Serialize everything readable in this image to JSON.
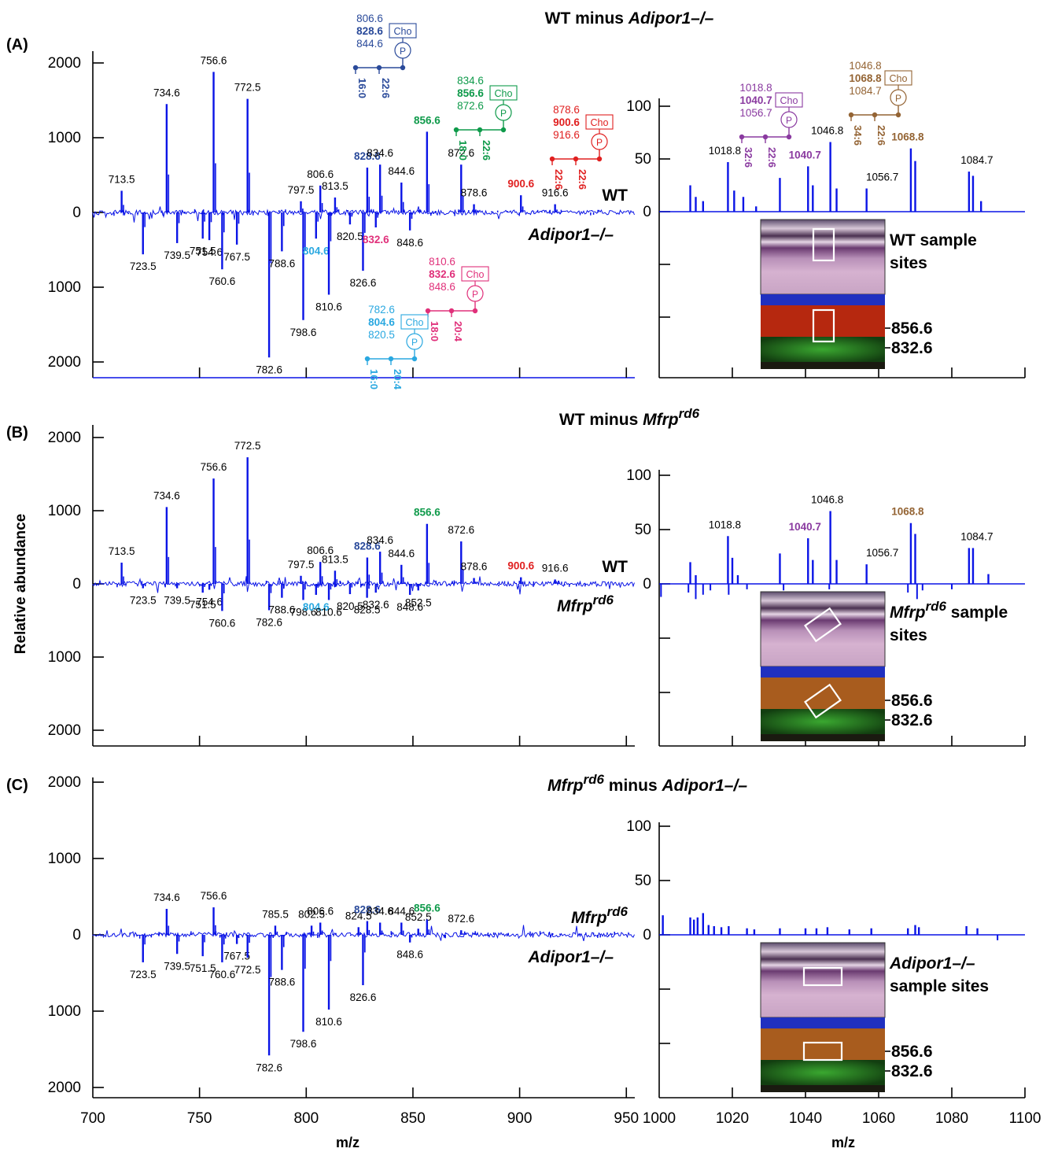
{
  "figure": {
    "ylabel": "Relative abundance",
    "xlabel": "m/z",
    "colors": {
      "spectrum": "#0a14e6",
      "axis": "#000000",
      "label": "#000000",
      "pc16_22": "#2a4a9a",
      "pc18_22": "#0e9a4a",
      "pc22_22": "#e02020",
      "pc18_20": "#e0307a",
      "pc16_20": "#2aa8e0",
      "pc32_22": "#8a3aa0",
      "pc34_22": "#946434"
    }
  },
  "panels": [
    {
      "letter": "(A)",
      "title_pre": "WT minus ",
      "title_it": "Adipor1–/–",
      "title_post": "",
      "upper_label": "WT",
      "upper_italic": false,
      "lower_label": "Adipor1–/–",
      "lower_italic": true,
      "inset_caption": [
        "WT sample",
        "sites"
      ],
      "inset_italic_first": "",
      "inset_markers": [
        "856.6",
        "832.6"
      ],
      "left_ticks": [
        "2000",
        "1000",
        "0",
        "1000",
        "2000"
      ],
      "right_ticks": [
        "100",
        "50",
        "0"
      ],
      "structures": [
        {
          "masses": [
            "806.6",
            "828.6",
            "844.6"
          ],
          "bold": 1,
          "chains": [
            "16:0",
            "22:6"
          ],
          "color": "pc16_22"
        },
        {
          "masses": [
            "834.6",
            "856.6",
            "872.6"
          ],
          "bold": 1,
          "chains": [
            "18:0",
            "22:6"
          ],
          "color": "pc18_22"
        },
        {
          "masses": [
            "878.6",
            "900.6",
            "916.6"
          ],
          "bold": 1,
          "chains": [
            "22:6",
            "22:6"
          ],
          "color": "pc22_22"
        },
        {
          "masses": [
            "810.6",
            "832.6",
            "848.6"
          ],
          "bold": 1,
          "chains": [
            "18:0",
            "20:4"
          ],
          "color": "pc18_20"
        },
        {
          "masses": [
            "782.6",
            "804.6",
            "820.5"
          ],
          "bold": 1,
          "chains": [
            "16:0",
            "20:4"
          ],
          "color": "pc16_20"
        },
        {
          "masses": [
            "1018.8",
            "1040.7",
            "1056.7"
          ],
          "bold": 1,
          "chains": [
            "32:6",
            "22:6"
          ],
          "color": "pc32_22"
        },
        {
          "masses": [
            "1046.8",
            "1068.8",
            "1084.7"
          ],
          "bold": 1,
          "chains": [
            "34:6",
            "22:6"
          ],
          "color": "pc34_22"
        }
      ],
      "head_labels": [
        "Cho",
        "P"
      ]
    },
    {
      "letter": "(B)",
      "title_pre": "WT minus ",
      "title_it": "Mfrp",
      "title_sup": "rd6",
      "title_post": "",
      "upper_label": "WT",
      "upper_italic": false,
      "lower_label": "Mfrp",
      "lower_sup": "rd6",
      "lower_italic": true,
      "inset_caption": [
        "sample",
        "sites"
      ],
      "inset_italic_first": "Mfrp",
      "inset_sup": "rd6",
      "inset_markers": [
        "856.6",
        "832.6"
      ],
      "left_ticks": [
        "2000",
        "1000",
        "0",
        "1000",
        "2000"
      ],
      "right_ticks": [
        "100",
        "50",
        "0"
      ]
    },
    {
      "letter": "(C)",
      "title_pre": "",
      "title_it": "Mfrp",
      "title_sup": "rd6",
      "title_post": " minus ",
      "title_it2": "Adipor1–/–",
      "upper_label": "Mfrp",
      "upper_sup": "rd6",
      "upper_italic": true,
      "lower_label": "Adipor1–/–",
      "lower_italic": true,
      "inset_caption": [
        "Adipor1–/–",
        "sample sites"
      ],
      "inset_italic_first": "",
      "inset_markers": [
        "856.6",
        "832.6"
      ],
      "left_ticks": [
        "2000",
        "1000",
        "0",
        "1000",
        "2000"
      ],
      "right_ticks": [
        "100",
        "50",
        "0"
      ],
      "x_ticks_left": [
        "700",
        "750",
        "800",
        "850",
        "900",
        "950"
      ],
      "x_ticks_right": [
        "1000",
        "1020",
        "1040",
        "1060",
        "1080",
        "1100"
      ]
    }
  ],
  "chart_data": [
    {
      "type": "bar",
      "title": "WT minus Adipor1–/–",
      "xlabel": "m/z",
      "ylabel": "Relative abundance",
      "xlim_left": [
        700,
        955
      ],
      "ylim_left": [
        -2000,
        2000
      ],
      "xlim_right": [
        1000,
        1100
      ],
      "ylim_right": [
        -100,
        100
      ],
      "upper_series": "WT",
      "lower_series": "Adipor1–/–",
      "peaks_up": [
        {
          "mz": 713.5,
          "v": 290,
          "label": "713.5"
        },
        {
          "mz": 734.6,
          "v": 1450,
          "label": "734.6"
        },
        {
          "mz": 756.6,
          "v": 1880,
          "label": "756.6"
        },
        {
          "mz": 772.5,
          "v": 1520,
          "label": "772.5"
        },
        {
          "mz": 797.5,
          "v": 150,
          "label": "797.5"
        },
        {
          "mz": 806.6,
          "v": 360,
          "label": "806.6"
        },
        {
          "mz": 813.5,
          "v": 200,
          "label": "813.5"
        },
        {
          "mz": 828.6,
          "v": 600,
          "label": "828.6",
          "color": "pc16_22",
          "bold": true
        },
        {
          "mz": 834.6,
          "v": 640,
          "label": "834.6"
        },
        {
          "mz": 844.6,
          "v": 400,
          "label": "844.6"
        },
        {
          "mz": 856.6,
          "v": 1080,
          "label": "856.6",
          "color": "pc18_22",
          "bold": true
        },
        {
          "mz": 872.6,
          "v": 640,
          "label": "872.6"
        },
        {
          "mz": 878.6,
          "v": 110,
          "label": "878.6"
        },
        {
          "mz": 900.6,
          "v": 230,
          "label": "900.6",
          "color": "pc22_22",
          "bold": true
        },
        {
          "mz": 916.6,
          "v": 110,
          "label": "916.6"
        }
      ],
      "peaks_down": [
        {
          "mz": 723.5,
          "v": 560,
          "label": "723.5"
        },
        {
          "mz": 739.5,
          "v": 410,
          "label": "739.5"
        },
        {
          "mz": 751.5,
          "v": 350,
          "label": "751.5"
        },
        {
          "mz": 754.6,
          "v": 370,
          "label": "754.6"
        },
        {
          "mz": 760.6,
          "v": 760,
          "label": "760.6"
        },
        {
          "mz": 767.5,
          "v": 430,
          "label": "767.5"
        },
        {
          "mz": 782.6,
          "v": 1940,
          "label": "782.6"
        },
        {
          "mz": 788.6,
          "v": 520,
          "label": "788.6"
        },
        {
          "mz": 798.6,
          "v": 1440,
          "label": "798.6"
        },
        {
          "mz": 804.6,
          "v": 350,
          "label": "804.6",
          "color": "pc16_20",
          "bold": true
        },
        {
          "mz": 810.6,
          "v": 1100,
          "label": "810.6"
        },
        {
          "mz": 820.5,
          "v": 160,
          "label": "820.5"
        },
        {
          "mz": 826.6,
          "v": 780,
          "label": "826.6"
        },
        {
          "mz": 832.6,
          "v": 200,
          "label": "832.6",
          "color": "pc18_20",
          "bold": true
        },
        {
          "mz": 848.6,
          "v": 240,
          "label": "848.6"
        }
      ],
      "right_peaks_up": [
        {
          "mz": 1008.5,
          "v": 25
        },
        {
          "mz": 1010,
          "v": 14
        },
        {
          "mz": 1012,
          "v": 10
        },
        {
          "mz": 1018.8,
          "v": 47,
          "label": "1018.8"
        },
        {
          "mz": 1020.5,
          "v": 20
        },
        {
          "mz": 1023,
          "v": 14
        },
        {
          "mz": 1026.5,
          "v": 5
        },
        {
          "mz": 1033,
          "v": 32
        },
        {
          "mz": 1040.7,
          "v": 43,
          "label": "1040.7",
          "color": "pc32_22",
          "bold": true
        },
        {
          "mz": 1042,
          "v": 25
        },
        {
          "mz": 1046.8,
          "v": 66,
          "label": "1046.8"
        },
        {
          "mz": 1048.5,
          "v": 22
        },
        {
          "mz": 1056.7,
          "v": 22,
          "label": "1056.7"
        },
        {
          "mz": 1068.8,
          "v": 60,
          "label": "1068.8",
          "color": "pc34_22",
          "bold": true
        },
        {
          "mz": 1070,
          "v": 48
        },
        {
          "mz": 1084.7,
          "v": 38,
          "label": "1084.7"
        },
        {
          "mz": 1085.8,
          "v": 34
        },
        {
          "mz": 1088,
          "v": 10
        }
      ]
    },
    {
      "type": "bar",
      "title": "WT minus Mfrprd6",
      "xlabel": "m/z",
      "ylabel": "Relative abundance",
      "xlim_left": [
        700,
        955
      ],
      "ylim_left": [
        -2000,
        2000
      ],
      "xlim_right": [
        1000,
        1100
      ],
      "ylim_right": [
        -100,
        100
      ],
      "upper_series": "WT",
      "lower_series": "Mfrprd6",
      "peaks_up": [
        {
          "mz": 713.5,
          "v": 290,
          "label": "713.5"
        },
        {
          "mz": 734.6,
          "v": 1050,
          "label": "734.6"
        },
        {
          "mz": 756.6,
          "v": 1440,
          "label": "756.6"
        },
        {
          "mz": 772.5,
          "v": 1730,
          "label": "772.5"
        },
        {
          "mz": 797.5,
          "v": 110,
          "label": "797.5"
        },
        {
          "mz": 806.6,
          "v": 300,
          "label": "806.6"
        },
        {
          "mz": 813.5,
          "v": 180,
          "label": "813.5"
        },
        {
          "mz": 828.6,
          "v": 360,
          "label": "828.6",
          "color": "pc16_22",
          "bold": true
        },
        {
          "mz": 834.6,
          "v": 440,
          "label": "834.6"
        },
        {
          "mz": 844.6,
          "v": 260,
          "label": "844.6"
        },
        {
          "mz": 856.6,
          "v": 820,
          "label": "856.6",
          "color": "pc18_22",
          "bold": true
        },
        {
          "mz": 872.6,
          "v": 580,
          "label": "872.6"
        },
        {
          "mz": 878.6,
          "v": 80,
          "label": "878.6"
        },
        {
          "mz": 900.6,
          "v": 90,
          "label": "900.6",
          "color": "pc22_22",
          "bold": true
        },
        {
          "mz": 916.6,
          "v": 60,
          "label": "916.6"
        }
      ],
      "peaks_down": [
        {
          "mz": 723.5,
          "v": 60,
          "label": "723.5"
        },
        {
          "mz": 739.5,
          "v": 60,
          "label": "739.5"
        },
        {
          "mz": 751.5,
          "v": 120,
          "label": "751.5"
        },
        {
          "mz": 754.6,
          "v": 80,
          "label": "754.6"
        },
        {
          "mz": 760.6,
          "v": 370,
          "label": "760.6"
        },
        {
          "mz": 782.6,
          "v": 360,
          "label": "782.6"
        },
        {
          "mz": 788.6,
          "v": 190,
          "label": "788.6"
        },
        {
          "mz": 798.6,
          "v": 220,
          "label": "798.6"
        },
        {
          "mz": 804.6,
          "v": 150,
          "label": "804.6",
          "color": "pc16_20",
          "bold": true
        },
        {
          "mz": 810.6,
          "v": 220,
          "label": "810.6"
        },
        {
          "mz": 820.5,
          "v": 140,
          "label": "820.5"
        },
        {
          "mz": 828.5,
          "v": 190,
          "label": "828.5"
        },
        {
          "mz": 832.6,
          "v": 120,
          "label": "832.6"
        },
        {
          "mz": 848.6,
          "v": 150,
          "label": "848.6"
        },
        {
          "mz": 852.5,
          "v": 90,
          "label": "852.5"
        }
      ],
      "right_peaks_up": [
        {
          "mz": 1008.5,
          "v": 20
        },
        {
          "mz": 1010,
          "v": 8
        },
        {
          "mz": 1018.8,
          "v": 44,
          "label": "1018.8"
        },
        {
          "mz": 1020,
          "v": 24
        },
        {
          "mz": 1021.5,
          "v": 8
        },
        {
          "mz": 1033,
          "v": 28
        },
        {
          "mz": 1040.7,
          "v": 42,
          "label": "1040.7",
          "color": "pc32_22",
          "bold": true
        },
        {
          "mz": 1042,
          "v": 22
        },
        {
          "mz": 1046.8,
          "v": 67,
          "label": "1046.8"
        },
        {
          "mz": 1048.5,
          "v": 22
        },
        {
          "mz": 1056.7,
          "v": 18,
          "label": "1056.7"
        },
        {
          "mz": 1068.8,
          "v": 56,
          "label": "1068.8",
          "color": "pc34_22",
          "bold": true
        },
        {
          "mz": 1070,
          "v": 46
        },
        {
          "mz": 1084.7,
          "v": 33,
          "label": "1084.7"
        },
        {
          "mz": 1085.8,
          "v": 33
        },
        {
          "mz": 1090,
          "v": 9
        }
      ],
      "right_peaks_down": [
        {
          "mz": 1000.5,
          "v": 12
        },
        {
          "mz": 1008,
          "v": 8
        },
        {
          "mz": 1010,
          "v": 14
        },
        {
          "mz": 1012,
          "v": 10
        },
        {
          "mz": 1014,
          "v": 6
        },
        {
          "mz": 1019,
          "v": 10
        },
        {
          "mz": 1024,
          "v": 5
        },
        {
          "mz": 1034,
          "v": 6
        },
        {
          "mz": 1046.5,
          "v": 5
        },
        {
          "mz": 1068,
          "v": 8
        },
        {
          "mz": 1070.5,
          "v": 14
        },
        {
          "mz": 1072,
          "v": 6
        },
        {
          "mz": 1080,
          "v": 5
        }
      ]
    },
    {
      "type": "bar",
      "title": "Mfrprd6 minus Adipor1–/–",
      "xlabel": "m/z",
      "ylabel": "Relative abundance",
      "xlim_left": [
        700,
        955
      ],
      "ylim_left": [
        -2000,
        2000
      ],
      "xlim_right": [
        1000,
        1100
      ],
      "ylim_right": [
        -100,
        100
      ],
      "upper_series": "Mfrprd6",
      "lower_series": "Adipor1–/–",
      "peaks_up": [
        {
          "mz": 734.6,
          "v": 340,
          "label": "734.6"
        },
        {
          "mz": 756.6,
          "v": 360,
          "label": "756.6"
        },
        {
          "mz": 785.5,
          "v": 120,
          "label": "785.5"
        },
        {
          "mz": 802.5,
          "v": 120,
          "label": "802.5"
        },
        {
          "mz": 806.6,
          "v": 160,
          "label": "806.6"
        },
        {
          "mz": 824.5,
          "v": 100,
          "label": "824.5"
        },
        {
          "mz": 828.6,
          "v": 180,
          "label": "828.6",
          "color": "pc16_22",
          "bold": true
        },
        {
          "mz": 834.6,
          "v": 160,
          "label": "834.6"
        },
        {
          "mz": 844.6,
          "v": 160,
          "label": "844.6"
        },
        {
          "mz": 852.5,
          "v": 80,
          "label": "852.5"
        },
        {
          "mz": 856.6,
          "v": 200,
          "label": "856.6",
          "color": "pc18_22",
          "bold": true
        },
        {
          "mz": 872.6,
          "v": 60,
          "label": "872.6"
        }
      ],
      "peaks_down": [
        {
          "mz": 723.5,
          "v": 360,
          "label": "723.5"
        },
        {
          "mz": 739.5,
          "v": 250,
          "label": "739.5"
        },
        {
          "mz": 751.5,
          "v": 280,
          "label": "751.5"
        },
        {
          "mz": 760.6,
          "v": 360,
          "label": "760.6"
        },
        {
          "mz": 767.5,
          "v": 120,
          "label": "767.5"
        },
        {
          "mz": 772.5,
          "v": 300,
          "label": "772.5"
        },
        {
          "mz": 782.6,
          "v": 1580,
          "label": "782.6"
        },
        {
          "mz": 788.6,
          "v": 460,
          "label": "788.6"
        },
        {
          "mz": 798.6,
          "v": 1270,
          "label": "798.6"
        },
        {
          "mz": 810.6,
          "v": 980,
          "label": "810.6"
        },
        {
          "mz": 826.6,
          "v": 660,
          "label": "826.6"
        },
        {
          "mz": 848.6,
          "v": 100,
          "label": "848.6"
        }
      ],
      "right_peaks_up": [
        {
          "mz": 1001,
          "v": 18
        },
        {
          "mz": 1008.5,
          "v": 16
        },
        {
          "mz": 1009.5,
          "v": 14
        },
        {
          "mz": 1010.5,
          "v": 16
        },
        {
          "mz": 1012,
          "v": 20
        },
        {
          "mz": 1013.5,
          "v": 9
        },
        {
          "mz": 1015,
          "v": 8
        },
        {
          "mz": 1017,
          "v": 7
        },
        {
          "mz": 1019,
          "v": 8
        },
        {
          "mz": 1024,
          "v": 6
        },
        {
          "mz": 1026,
          "v": 5
        },
        {
          "mz": 1033,
          "v": 6
        },
        {
          "mz": 1040,
          "v": 6
        },
        {
          "mz": 1043,
          "v": 6
        },
        {
          "mz": 1046,
          "v": 7
        },
        {
          "mz": 1052,
          "v": 5
        },
        {
          "mz": 1058,
          "v": 6
        },
        {
          "mz": 1068,
          "v": 6
        },
        {
          "mz": 1070,
          "v": 9
        },
        {
          "mz": 1071,
          "v": 7
        },
        {
          "mz": 1084,
          "v": 8
        },
        {
          "mz": 1087,
          "v": 6
        }
      ],
      "right_peaks_down": [
        {
          "mz": 1092.5,
          "v": 5
        }
      ]
    }
  ]
}
